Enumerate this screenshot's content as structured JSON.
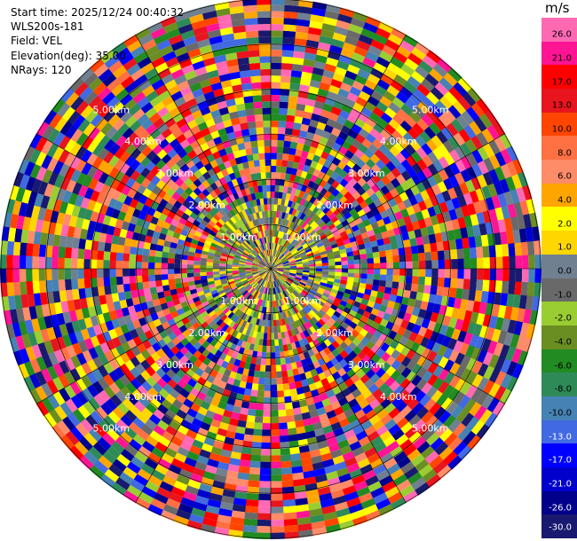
{
  "plot": {
    "info_lines": [
      "Start time: 2025/12/24 00:40:32",
      "WLS200s-181",
      "Field: VEL",
      "Elevation(deg): 35.00",
      "NRays: 120"
    ],
    "range_ring_labels": [
      "1.00km",
      "2.00km",
      "3.00km",
      "4.00km",
      "5.00km"
    ],
    "nrays": 120,
    "ngates": 42
  },
  "colorbar": {
    "unit": "m/s",
    "ticks": [
      "26.0",
      "21.0",
      "17.0",
      "13.0",
      "10.0",
      "8.0",
      "6.0",
      "4.0",
      "2.0",
      "1.0",
      "0.0",
      "-1.0",
      "-2.0",
      "-4.0",
      "-6.0",
      "-8.0",
      "-10.0",
      "-13.0",
      "-17.0",
      "-21.0",
      "-26.0",
      "-30.0"
    ],
    "colors": [
      "#ff69b4",
      "#ff1493",
      "#ff0000",
      "#e8141e",
      "#ff4500",
      "#ff7043",
      "#ff8c69",
      "#ffa500",
      "#ffff00",
      "#ffd700",
      "#708090",
      "#696969",
      "#9acd32",
      "#6b8e23",
      "#228b22",
      "#2e8b57",
      "#4682b4",
      "#4169e1",
      "#0000ff",
      "#0000cd",
      "#00008b",
      "#191970"
    ]
  }
}
